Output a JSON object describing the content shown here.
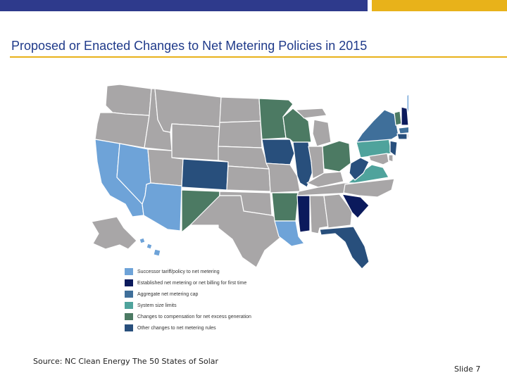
{
  "title": "Proposed or Enacted Changes to Net Metering Policies in 2015",
  "colors": {
    "navy_bar": "#2e3a8c",
    "gold_bar": "#e8b21a",
    "title_text": "#1f3a8a",
    "no_change": "#a8a6a7"
  },
  "legend": [
    {
      "label": "Successor tariff/policy to net metering",
      "color": "#6ea3d8",
      "key": "successor"
    },
    {
      "label": "Established net metering or net billing for first time",
      "color": "#0b1a5c",
      "key": "established"
    },
    {
      "label": "Aggregate net metering cap",
      "color": "#3f6f9a",
      "key": "cap"
    },
    {
      "label": "System size limits",
      "color": "#4fa39c",
      "key": "size"
    },
    {
      "label": "Changes to compensation for net excess generation",
      "color": "#4c7a63",
      "key": "compensation"
    },
    {
      "label": "Other changes to net metering rules",
      "color": "#284f7c",
      "key": "other"
    }
  ],
  "states": {
    "CA": "successor",
    "NV": "successor",
    "AZ": "successor",
    "LA": "successor",
    "HI": "successor",
    "ME": "successor",
    "MS": "established",
    "SC": "established",
    "NH": "established",
    "NY": "cap",
    "MA": "cap",
    "PA": "size",
    "VA": "size",
    "MN": "compensation",
    "WI": "compensation",
    "NM": "compensation",
    "AR": "compensation",
    "OH": "compensation",
    "VT": "compensation",
    "CO": "other",
    "IA": "other",
    "IL": "other",
    "WV": "other",
    "FL": "other",
    "NJ": "other",
    "CT": "other"
  },
  "source": "Source: NC Clean Energy The 50 States of Solar",
  "slide_label": "Slide 7"
}
